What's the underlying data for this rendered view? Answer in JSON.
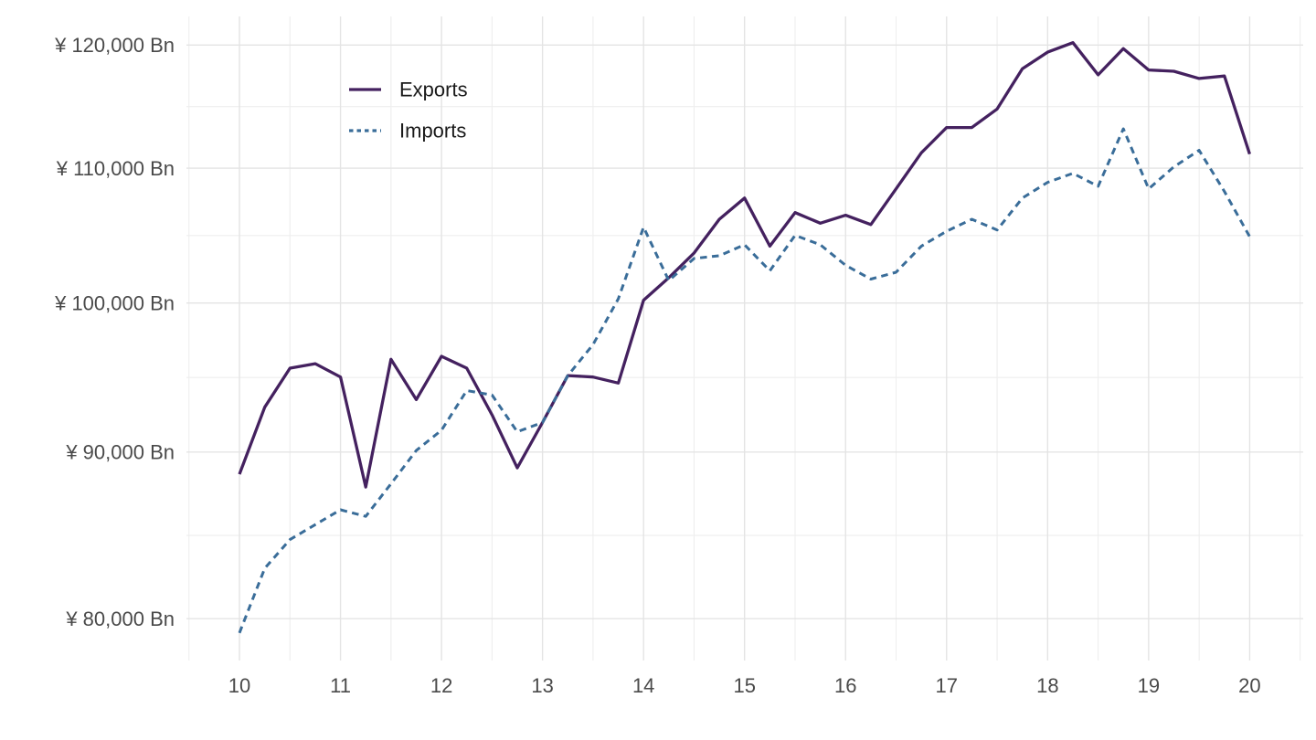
{
  "chart_data": {
    "type": "line",
    "title": "",
    "xlabel": "",
    "ylabel": "",
    "unit": "¥ Bn",
    "y_scale": "log",
    "grid": true,
    "legend_position": "top-left-inside",
    "x_domain": [
      9.475,
      20.53
    ],
    "y_domain": [
      77670,
      122450
    ],
    "x": [
      10,
      10.25,
      10.5,
      10.75,
      11,
      11.25,
      11.5,
      11.75,
      12,
      12.25,
      12.5,
      12.75,
      13,
      13.25,
      13.5,
      13.75,
      14,
      14.25,
      14.5,
      14.75,
      15,
      15.25,
      15.5,
      15.75,
      16,
      16.25,
      16.5,
      16.75,
      17,
      17.25,
      17.5,
      17.75,
      18,
      18.25,
      18.5,
      18.75,
      19,
      19.25,
      19.5,
      19.75,
      20
    ],
    "series": [
      {
        "name": "Exports",
        "color": "#44215f",
        "line_style": "solid",
        "values": [
          88600,
          92900,
          95500,
          95800,
          94900,
          87800,
          96100,
          93400,
          96300,
          95500,
          92400,
          89000,
          91900,
          95000,
          94900,
          94500,
          100200,
          101800,
          103600,
          106100,
          107700,
          104100,
          106600,
          105800,
          106400,
          105700,
          108400,
          111200,
          113200,
          113200,
          114700,
          118000,
          119400,
          120200,
          117500,
          119700,
          117900,
          117800,
          117200,
          117400,
          111100
        ]
      },
      {
        "name": "Imports",
        "color": "#3a6d99",
        "line_style": "dashed",
        "values": [
          79200,
          82900,
          84600,
          85500,
          86400,
          86000,
          88000,
          90100,
          91400,
          94000,
          93700,
          91300,
          91900,
          95000,
          97100,
          100300,
          105500,
          101600,
          103200,
          103400,
          104200,
          102300,
          104900,
          104200,
          102700,
          101700,
          102200,
          104100,
          105200,
          106100,
          105300,
          107700,
          108900,
          109600,
          108600,
          113100,
          108400,
          110100,
          111400,
          108200,
          104800
        ]
      }
    ],
    "x_ticks": [
      {
        "value": 10,
        "label": "10"
      },
      {
        "value": 11,
        "label": "11"
      },
      {
        "value": 12,
        "label": "12"
      },
      {
        "value": 13,
        "label": "13"
      },
      {
        "value": 14,
        "label": "14"
      },
      {
        "value": 15,
        "label": "15"
      },
      {
        "value": 16,
        "label": "16"
      },
      {
        "value": 17,
        "label": "17"
      },
      {
        "value": 18,
        "label": "18"
      },
      {
        "value": 19,
        "label": "19"
      },
      {
        "value": 20,
        "label": "20"
      }
    ],
    "y_ticks": [
      {
        "value": 80000,
        "label": "¥ 80,000 Bn"
      },
      {
        "value": 90000,
        "label": "¥ 90,000 Bn"
      },
      {
        "value": 100000,
        "label": "¥ 100,000 Bn"
      },
      {
        "value": 110000,
        "label": "¥ 110,000 Bn"
      },
      {
        "value": 120000,
        "label": "¥ 120,000 Bn"
      }
    ]
  },
  "colors": {
    "background": "#ffffff",
    "grid_major": "#e4e4e4",
    "grid_minor": "#eeeeee",
    "axis_text": "#4a4a4a",
    "legend_text": "#1a1a1a"
  }
}
